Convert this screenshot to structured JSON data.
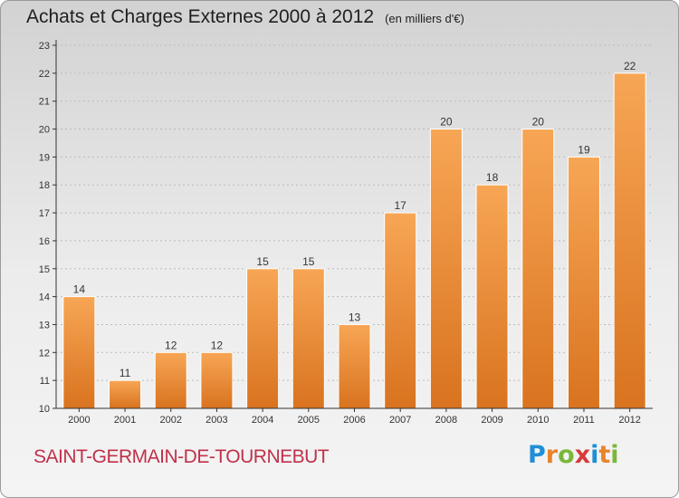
{
  "header": {
    "title": "Achats et Charges Externes 2000 à 2012",
    "unit": "(en milliers d'€)"
  },
  "footer": {
    "commune": "SAINT-GERMAIN-DE-TOURNEBUT",
    "brand": "Proxiti"
  },
  "brand_letters": [
    {
      "char": "P",
      "color": "#1f8fd6"
    },
    {
      "char": "r",
      "color": "#e8842a"
    },
    {
      "char": "o",
      "color": "#7bb73a"
    },
    {
      "char": "x",
      "color": "#d83a3a"
    },
    {
      "char": "i",
      "color": "#1f8fd6"
    },
    {
      "char": "t",
      "color": "#e8842a"
    },
    {
      "char": "i",
      "color": "#7bb73a"
    }
  ],
  "colors": {
    "bar_top": "#f7a655",
    "bar_bottom": "#d9731f",
    "grid": "#bbbbbb",
    "axis": "#333333",
    "title": "#1f1f1f",
    "commune": "#c0304a"
  },
  "chart_data": {
    "type": "bar",
    "categories": [
      "2000",
      "2001",
      "2002",
      "2003",
      "2004",
      "2005",
      "2006",
      "2007",
      "2008",
      "2009",
      "2010",
      "2011",
      "2012"
    ],
    "values": [
      14,
      11,
      12,
      12,
      15,
      15,
      13,
      17,
      20,
      18,
      20,
      19,
      22
    ],
    "data_labels": [
      "14",
      "11",
      "12",
      "12",
      "15",
      "15",
      "13",
      "17",
      "20",
      "18",
      "20",
      "19",
      "22"
    ],
    "yticks": [
      10,
      11,
      12,
      13,
      14,
      15,
      16,
      17,
      18,
      19,
      20,
      21,
      22,
      23
    ],
    "ylim": [
      10,
      23
    ],
    "grid": true,
    "legend": "none"
  }
}
